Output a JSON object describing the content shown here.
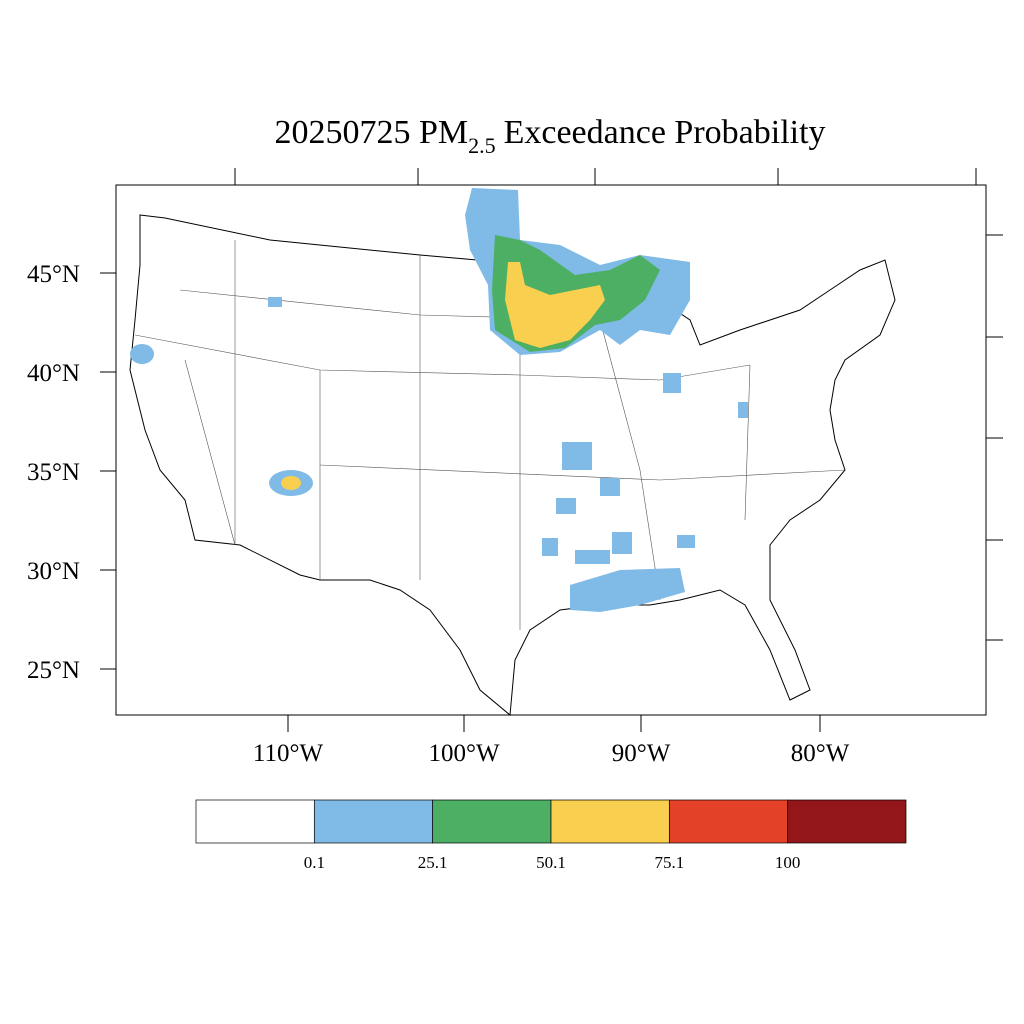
{
  "title": {
    "main": "20250725 PM",
    "subscript": "2.5",
    "rest": "Exceedance Probability"
  },
  "map": {
    "latitude_labels": [
      "45°N",
      "40°N",
      "35°N",
      "30°N",
      "25°N"
    ],
    "longitude_labels": [
      "110°W",
      "100°W",
      "90°W",
      "80°W"
    ]
  },
  "legend": {
    "thresholds": [
      0.1,
      25.1,
      50.1,
      75.1,
      100
    ],
    "colors": [
      "#ffffff",
      "#7fbbe6",
      "#4caf63",
      "#f9cf50",
      "#e34128",
      "#93161a"
    ]
  }
}
